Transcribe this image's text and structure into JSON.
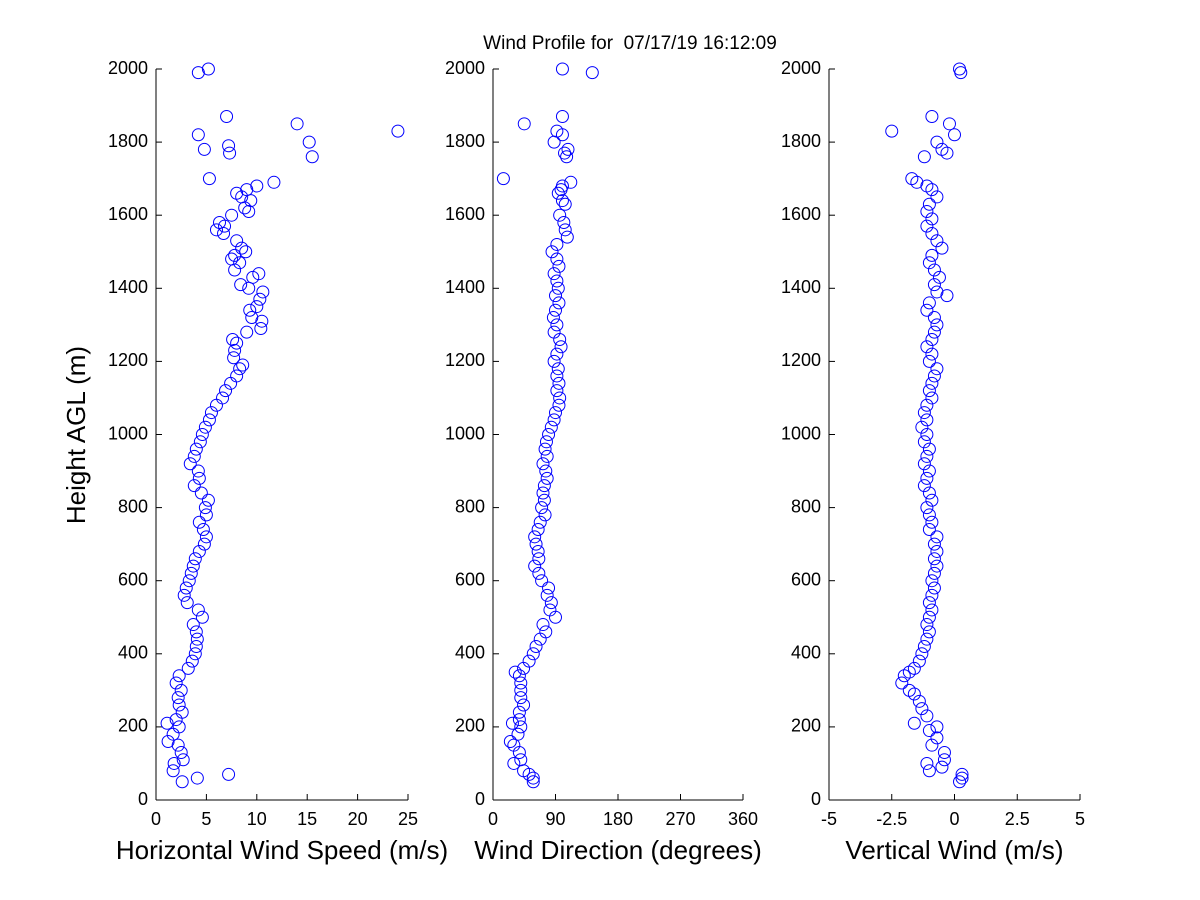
{
  "title": "Wind Profile for  07/17/19 16:12:09",
  "chart_data": [
    {
      "type": "scatter",
      "ylabel": "Height AGL (m)",
      "xlabel": "Horizontal Wind Speed (m/s)",
      "color": "#0000ff",
      "xlim": [
        0,
        25
      ],
      "xticks": [
        0,
        5,
        10,
        15,
        20,
        25
      ],
      "ylim": [
        0,
        2000
      ],
      "yticks": [
        0,
        200,
        400,
        600,
        800,
        1000,
        1200,
        1400,
        1600,
        1800,
        2000
      ],
      "x": [
        4.2,
        5.2,
        7,
        14,
        24,
        4.2,
        15.2,
        7.2,
        4.8,
        7.3,
        15.5,
        5.3,
        11.7,
        10,
        9,
        8,
        8.5,
        9.4,
        8.8,
        9.2,
        7.5,
        6.3,
        6.8,
        6,
        6.7,
        8,
        8.5,
        8.9,
        7.8,
        7.5,
        8.3,
        7.8,
        10.2,
        9.6,
        8.4,
        9.2,
        10.6,
        10.3,
        10,
        9.3,
        9.5,
        10.5,
        10.4,
        9,
        7.6,
        8,
        7.8,
        7.7,
        8.6,
        8.3,
        8,
        7.4,
        6.9,
        6.6,
        6,
        5.5,
        5.3,
        4.9,
        4.6,
        4.4,
        4,
        3.8,
        3.4,
        4.2,
        4.3,
        3.8,
        4.5,
        5.2,
        4.9,
        5,
        4.3,
        4.7,
        5,
        4.8,
        4.3,
        3.9,
        3.7,
        3.5,
        3.3,
        3,
        2.8,
        3.1,
        4.2,
        4.6,
        3.7,
        4,
        4.1,
        4,
        3.9,
        3.6,
        3.2,
        2.3,
        2,
        2.5,
        2.2,
        2.3,
        2.6,
        2,
        1.1,
        2.3,
        1.7,
        1.2,
        2.2,
        2.5,
        2.7,
        1.8,
        1.7,
        7.2,
        4.1,
        2.6
      ],
      "y": [
        1990,
        2000,
        1870,
        1850,
        1830,
        1820,
        1800,
        1790,
        1780,
        1770,
        1760,
        1700,
        1690,
        1680,
        1670,
        1660,
        1650,
        1640,
        1620,
        1610,
        1600,
        1580,
        1570,
        1560,
        1550,
        1530,
        1510,
        1500,
        1490,
        1480,
        1470,
        1450,
        1440,
        1430,
        1410,
        1400,
        1390,
        1370,
        1350,
        1340,
        1320,
        1310,
        1290,
        1280,
        1260,
        1250,
        1230,
        1210,
        1190,
        1180,
        1160,
        1140,
        1120,
        1100,
        1080,
        1060,
        1040,
        1020,
        1000,
        980,
        960,
        940,
        920,
        900,
        880,
        860,
        840,
        820,
        800,
        780,
        760,
        740,
        720,
        700,
        680,
        660,
        640,
        620,
        600,
        580,
        560,
        540,
        520,
        500,
        480,
        460,
        440,
        420,
        400,
        380,
        360,
        340,
        320,
        300,
        280,
        260,
        240,
        220,
        210,
        200,
        180,
        160,
        150,
        130,
        110,
        100,
        80,
        70,
        60,
        50
      ]
    },
    {
      "type": "scatter",
      "xlabel": "Wind Direction (degrees)",
      "color": "#0000ff",
      "xlim": [
        0,
        360
      ],
      "xticks": [
        0,
        90,
        180,
        270,
        360
      ],
      "ylim": [
        0,
        2000
      ],
      "yticks": [
        0,
        200,
        400,
        600,
        800,
        1000,
        1200,
        1400,
        1600,
        1800,
        2000
      ],
      "x": [
        100,
        143,
        100,
        45,
        92,
        100,
        88,
        108,
        103,
        106,
        15,
        112,
        100,
        98,
        94,
        100,
        104,
        96,
        102,
        104,
        107,
        92,
        85,
        92,
        95,
        88,
        92,
        94,
        90,
        95,
        90,
        87,
        92,
        88,
        96,
        98,
        92,
        88,
        94,
        92,
        95,
        92,
        96,
        95,
        90,
        88,
        84,
        80,
        77,
        75,
        78,
        72,
        76,
        78,
        74,
        72,
        74,
        70,
        75,
        68,
        65,
        60,
        62,
        65,
        66,
        60,
        66,
        70,
        80,
        78,
        84,
        82,
        90,
        72,
        76,
        68,
        62,
        58,
        52,
        44,
        32,
        38,
        40,
        40,
        40,
        44,
        38,
        38,
        28,
        40,
        36,
        25,
        30,
        38,
        40,
        30,
        44,
        52,
        58,
        58
      ],
      "y": [
        2000,
        1990,
        1870,
        1850,
        1830,
        1820,
        1800,
        1780,
        1770,
        1760,
        1700,
        1690,
        1680,
        1670,
        1660,
        1640,
        1630,
        1600,
        1580,
        1560,
        1540,
        1520,
        1500,
        1480,
        1460,
        1440,
        1420,
        1400,
        1380,
        1360,
        1340,
        1320,
        1300,
        1280,
        1260,
        1240,
        1220,
        1200,
        1180,
        1160,
        1140,
        1120,
        1100,
        1080,
        1060,
        1040,
        1020,
        1000,
        980,
        960,
        940,
        920,
        900,
        880,
        860,
        840,
        820,
        800,
        780,
        760,
        740,
        720,
        700,
        680,
        660,
        640,
        620,
        600,
        580,
        560,
        540,
        520,
        500,
        480,
        460,
        440,
        420,
        400,
        380,
        360,
        350,
        340,
        320,
        300,
        280,
        260,
        240,
        220,
        210,
        200,
        180,
        160,
        150,
        130,
        110,
        100,
        80,
        70,
        60,
        50
      ]
    },
    {
      "type": "scatter",
      "xlabel": "Vertical Wind (m/s)",
      "color": "#0000ff",
      "xlim": [
        -5,
        5
      ],
      "xticks": [
        -5,
        -2.5,
        0,
        2.5,
        5
      ],
      "ylim": [
        0,
        2000
      ],
      "yticks": [
        0,
        200,
        400,
        600,
        800,
        1000,
        1200,
        1400,
        1600,
        1800,
        2000
      ],
      "x": [
        0.2,
        0.25,
        -0.9,
        -0.2,
        -2.5,
        0,
        -0.7,
        -0.5,
        -0.3,
        -1.2,
        -1.7,
        -1.5,
        -1.1,
        -0.9,
        -0.7,
        -1,
        -1.1,
        -0.9,
        -1.1,
        -0.9,
        -0.7,
        -0.5,
        -0.9,
        -1,
        -0.8,
        -0.6,
        -0.8,
        -0.7,
        -0.3,
        -1,
        -1.1,
        -0.8,
        -0.7,
        -0.8,
        -0.9,
        -1.1,
        -0.9,
        -1,
        -0.7,
        -0.8,
        -0.9,
        -1,
        -0.9,
        -1.1,
        -1.2,
        -1.1,
        -1.3,
        -1.1,
        -1.2,
        -1,
        -1.1,
        -1.2,
        -1,
        -1.1,
        -1.2,
        -1,
        -0.9,
        -1.1,
        -1,
        -0.9,
        -1,
        -0.7,
        -0.8,
        -0.7,
        -0.8,
        -0.7,
        -0.8,
        -0.9,
        -0.8,
        -0.9,
        -1,
        -0.9,
        -1,
        -1.1,
        -1,
        -1.1,
        -1.2,
        -1.3,
        -1.4,
        -1.6,
        -1.8,
        -2,
        -2.1,
        -1.8,
        -1.6,
        -1.4,
        -1.3,
        -1.1,
        -1.6,
        -0.7,
        -1,
        -0.7,
        -0.9,
        -0.4,
        -0.4,
        -1.1,
        -0.5,
        -1,
        0.3,
        0.3,
        0.2
      ],
      "y": [
        2000,
        1990,
        1870,
        1850,
        1830,
        1820,
        1800,
        1780,
        1770,
        1760,
        1700,
        1690,
        1680,
        1670,
        1650,
        1630,
        1610,
        1590,
        1570,
        1550,
        1530,
        1510,
        1490,
        1470,
        1450,
        1430,
        1410,
        1390,
        1380,
        1360,
        1340,
        1320,
        1300,
        1280,
        1260,
        1240,
        1220,
        1200,
        1180,
        1160,
        1140,
        1120,
        1100,
        1080,
        1060,
        1040,
        1020,
        1000,
        980,
        960,
        940,
        920,
        900,
        880,
        860,
        840,
        820,
        800,
        780,
        760,
        740,
        720,
        700,
        680,
        660,
        640,
        620,
        600,
        580,
        560,
        540,
        520,
        500,
        480,
        460,
        440,
        420,
        400,
        380,
        360,
        350,
        340,
        320,
        300,
        290,
        270,
        250,
        230,
        210,
        200,
        190,
        170,
        150,
        130,
        110,
        100,
        90,
        80,
        70,
        60,
        50
      ]
    }
  ]
}
